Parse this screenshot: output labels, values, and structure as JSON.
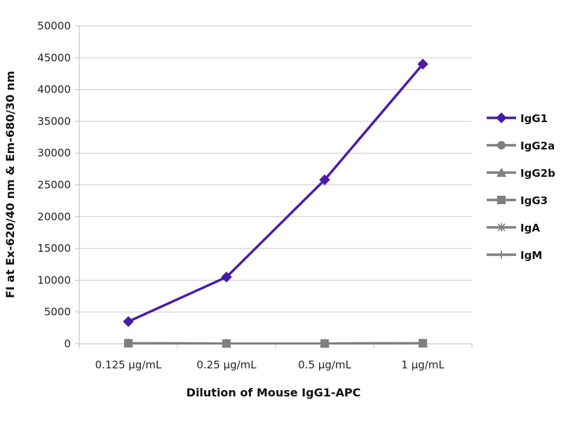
{
  "chart_data": {
    "type": "line",
    "title": "",
    "xlabel": "Dilution of Mouse IgG1-APC",
    "ylabel": "FI at Ex-620/40 nm & Em-680/30 nm",
    "categories": [
      "0.125 µg/mL",
      "0.25 µg/mL",
      "0.5 µg/mL",
      "1 µg/mL"
    ],
    "ylim": [
      0,
      50000
    ],
    "yticks": [
      0,
      5000,
      10000,
      15000,
      20000,
      25000,
      30000,
      35000,
      40000,
      45000,
      50000
    ],
    "grid": true,
    "legend_position": "right",
    "series": [
      {
        "name": "IgG1",
        "values": [
          3500,
          10500,
          25800,
          44000
        ],
        "color": "#4b1aa8",
        "marker": "diamond"
      },
      {
        "name": "IgG2a",
        "values": [
          100,
          50,
          50,
          100
        ],
        "color": "#7f7f7f",
        "marker": "circle"
      },
      {
        "name": "IgG2b",
        "values": [
          100,
          50,
          50,
          100
        ],
        "color": "#7f7f7f",
        "marker": "triangle"
      },
      {
        "name": "IgG3",
        "values": [
          100,
          50,
          50,
          100
        ],
        "color": "#7f7f7f",
        "marker": "square"
      },
      {
        "name": "IgA",
        "values": [
          100,
          50,
          50,
          100
        ],
        "color": "#7f7f7f",
        "marker": "star"
      },
      {
        "name": "IgM",
        "values": [
          100,
          50,
          50,
          100
        ],
        "color": "#7f7f7f",
        "marker": "plus"
      }
    ]
  }
}
